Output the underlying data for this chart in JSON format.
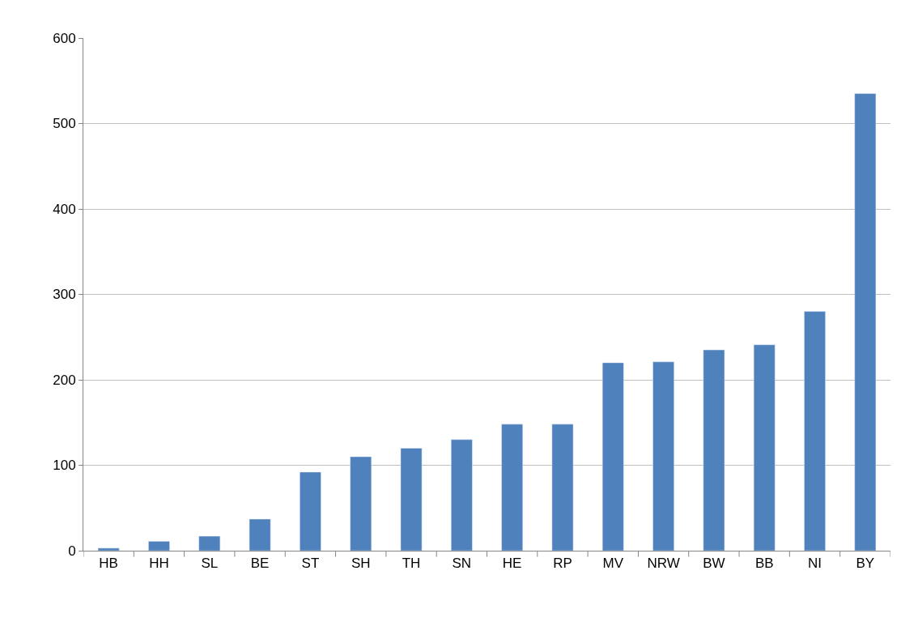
{
  "chart_data": {
    "type": "bar",
    "categories": [
      "HB",
      "HH",
      "SL",
      "BE",
      "ST",
      "SH",
      "TH",
      "SN",
      "HE",
      "RP",
      "MV",
      "NRW",
      "BW",
      "BB",
      "NI",
      "BY"
    ],
    "values": [
      3,
      11,
      17,
      37,
      92,
      110,
      120,
      130,
      148,
      148,
      220,
      221,
      235,
      241,
      280,
      535
    ],
    "color": "#4f81bd",
    "ylim": [
      0,
      600
    ],
    "yticks": [
      0,
      100,
      200,
      300,
      400,
      500,
      600
    ],
    "grid": "y"
  }
}
